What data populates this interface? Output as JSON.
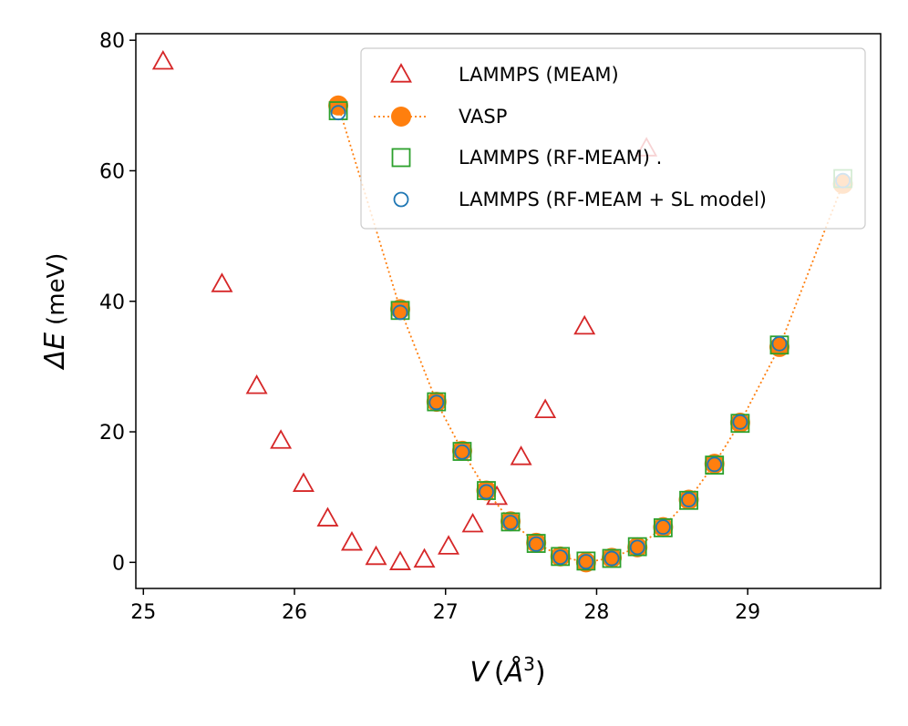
{
  "chart_data": {
    "type": "scatter",
    "xlabel": "V (Å³)",
    "xlabel_parts": {
      "var": "V",
      "unit_open": "(",
      "unit": "Å",
      "sup": "3",
      "unit_close": ")"
    },
    "ylabel": "ΔE (meV)",
    "ylabel_parts": {
      "var": "ΔE",
      "unit": "(meV)"
    },
    "xlim": [
      24.95,
      29.88
    ],
    "ylim": [
      -4,
      81
    ],
    "xticks": [
      25,
      26,
      27,
      28,
      29
    ],
    "yticks": [
      0,
      20,
      40,
      60,
      80
    ],
    "grid": false,
    "legend_position": "upper-right",
    "colors": {
      "meam": "#d62728",
      "vasp": "#ff7f0e",
      "rf": "#2ca02c",
      "sl": "#1f77b4"
    },
    "series": [
      {
        "name": "LAMMPS (MEAM)",
        "marker": "triangle-open",
        "x": [
          25.13,
          25.52,
          25.75,
          25.91,
          26.06,
          26.22,
          26.38,
          26.54,
          26.7,
          26.86,
          27.02,
          27.18,
          27.34,
          27.5,
          27.66,
          27.92,
          28.33
        ],
        "y": [
          76.7,
          42.6,
          27.0,
          18.6,
          12.0,
          6.7,
          3.0,
          0.8,
          0.0,
          0.4,
          2.4,
          5.8,
          10.0,
          16.1,
          23.3,
          36.1,
          63.4
        ]
      },
      {
        "name": "VASP",
        "marker": "filled-circle-dotted-line",
        "x": [
          26.29,
          26.7,
          26.94,
          27.11,
          27.27,
          27.43,
          27.6,
          27.76,
          27.93,
          28.1,
          28.27,
          28.44,
          28.61,
          28.78,
          28.95,
          29.21,
          29.63
        ],
        "y": [
          70.0,
          38.8,
          24.6,
          17.1,
          11.0,
          6.3,
          3.0,
          0.9,
          0.0,
          0.7,
          2.3,
          5.4,
          9.6,
          15.1,
          21.4,
          33.0,
          58.0
        ]
      },
      {
        "name": "LAMMPS (RF-MEAM) .",
        "marker": "square-open",
        "x": [
          26.29,
          26.7,
          26.94,
          27.11,
          27.27,
          27.43,
          27.6,
          27.76,
          27.93,
          28.1,
          28.27,
          28.44,
          28.61,
          28.78,
          28.95,
          29.21,
          29.63
        ],
        "y": [
          69.2,
          38.6,
          24.6,
          17.0,
          11.0,
          6.2,
          2.9,
          0.9,
          0.2,
          0.6,
          2.4,
          5.3,
          9.5,
          14.9,
          21.3,
          33.3,
          58.8
        ]
      },
      {
        "name": "LAMMPS (RF-MEAM + SL model)",
        "marker": "circle-open",
        "x": [
          26.29,
          26.7,
          26.94,
          27.11,
          27.27,
          27.43,
          27.6,
          27.76,
          27.93,
          28.1,
          28.27,
          28.44,
          28.61,
          28.78,
          28.95,
          29.21,
          29.63
        ],
        "y": [
          68.9,
          38.3,
          24.5,
          16.9,
          10.8,
          6.1,
          2.8,
          0.8,
          0.1,
          0.6,
          2.3,
          5.4,
          9.6,
          15.0,
          21.5,
          33.5,
          58.5
        ]
      }
    ]
  }
}
